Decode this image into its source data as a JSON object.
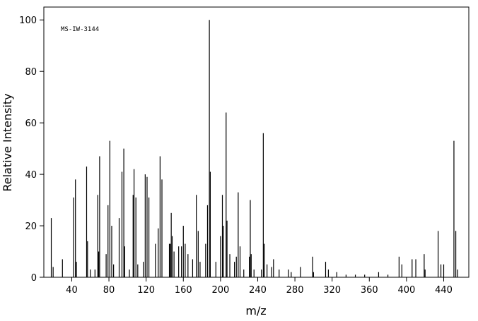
{
  "chart_data": {
    "type": "stick",
    "annotation": "MS-IW-3144",
    "xlabel": "m/z",
    "ylabel": "Relative Intensity",
    "color": "#000000",
    "xlim": [
      10,
      467
    ],
    "ylim": [
      0,
      105
    ],
    "xticks": [
      40,
      80,
      120,
      160,
      200,
      240,
      280,
      320,
      360,
      400,
      440
    ],
    "yticks": [
      0,
      20,
      40,
      60,
      80,
      100
    ],
    "x": [
      18,
      20,
      30,
      42,
      44,
      45,
      56,
      57,
      60,
      65,
      68,
      69,
      70,
      77,
      79,
      81,
      83,
      85,
      91,
      94,
      96,
      97,
      102,
      106,
      107,
      109,
      111,
      117,
      119,
      121,
      123,
      130,
      133,
      135,
      137,
      145,
      146,
      147,
      148,
      150,
      155,
      158,
      160,
      162,
      165,
      170,
      174,
      176,
      178,
      184,
      186,
      188,
      189,
      195,
      200,
      202,
      203,
      206,
      207,
      210,
      215,
      217,
      219,
      221,
      225,
      231,
      232,
      233,
      236,
      244,
      246,
      247,
      250,
      255,
      257,
      263,
      273,
      276,
      286,
      299,
      300,
      313,
      316,
      325,
      335,
      345,
      355,
      370,
      380,
      392,
      395,
      406,
      410,
      419,
      420,
      434,
      437,
      440,
      451,
      453,
      455
    ],
    "values": [
      23,
      4,
      7,
      31,
      38,
      6,
      43,
      14,
      3,
      3,
      32,
      10,
      47,
      9,
      28,
      53,
      20,
      5,
      23,
      41,
      50,
      12,
      3,
      32,
      42,
      31,
      5,
      6,
      40,
      39,
      31,
      13,
      19,
      47,
      38,
      13,
      13,
      25,
      16,
      10,
      12,
      12,
      20,
      13,
      9,
      7,
      32,
      18,
      6,
      13,
      28,
      100,
      41,
      6,
      16,
      32,
      20,
      64,
      22,
      9,
      6,
      8,
      33,
      12,
      3,
      8,
      30,
      9,
      3,
      3,
      56,
      13,
      5,
      4,
      7,
      3,
      3,
      2,
      4,
      8,
      2,
      6,
      3,
      2,
      1,
      1,
      1,
      2,
      1,
      8,
      5,
      7,
      7,
      9,
      3,
      18,
      5,
      5,
      53,
      18,
      3
    ]
  }
}
